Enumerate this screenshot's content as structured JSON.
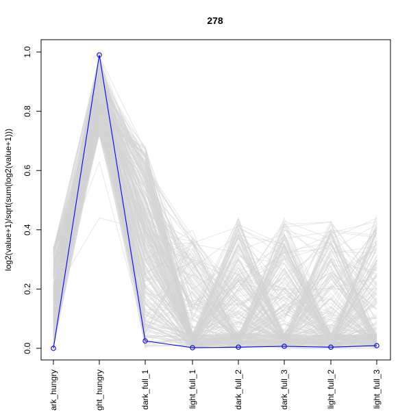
{
  "chart_data": {
    "type": "line",
    "title": "278",
    "xlabel": "",
    "ylabel": "log2(value+1)/sqrt(sum(log2(value+1)))",
    "categories": [
      "dark_hungry",
      "light_hungry",
      "dark_full_1",
      "light_full_1",
      "dark_full_2",
      "dark_full_3",
      "light_full_2",
      "light_full_3"
    ],
    "visible_tick_text": [
      "ark_hungry",
      "ght_hungry",
      "dark_full_1",
      "light_full_1",
      "dark_full_2",
      "dark_full_3",
      "light_full_2",
      "light_full_3"
    ],
    "ylim": [
      0,
      1.0
    ],
    "yticks": [
      "0.0",
      "0.2",
      "0.4",
      "0.6",
      "0.8",
      "1.0"
    ],
    "grid": false,
    "legend": "none",
    "series": [
      {
        "values": [
          0.0,
          0.99,
          0.025,
          0.002,
          0.004,
          0.007,
          0.004,
          0.009
        ],
        "color": "#0000ff",
        "marker": "open-circle"
      }
    ],
    "background_profiles": {
      "color": "#d3d3d3",
      "description_values": [
        [
          0.1,
          0.92,
          0.65,
          0.1,
          0.0,
          0.02,
          0.0,
          0.01
        ],
        [
          0.2,
          0.85,
          0.55,
          0.05,
          0.3,
          0.05,
          0.02,
          0.25
        ],
        [
          0.3,
          0.78,
          0.2,
          0.0,
          0.0,
          0.35,
          0.0,
          0.0
        ],
        [
          0.05,
          0.95,
          0.4,
          0.2,
          0.02,
          0.0,
          0.38,
          0.03
        ],
        [
          0.25,
          0.82,
          0.1,
          0.3,
          0.25,
          0.3,
          0.0,
          0.4
        ],
        [
          0.15,
          0.88,
          0.68,
          0.0,
          0.4,
          0.0,
          0.0,
          0.0
        ],
        [
          0.33,
          0.74,
          0.3,
          0.1,
          0.0,
          0.4,
          0.3,
          0.1
        ],
        [
          0.08,
          0.9,
          0.5,
          0.0,
          0.2,
          0.2,
          0.2,
          0.2
        ],
        [
          0.22,
          0.63,
          0.05,
          0.25,
          0.15,
          0.0,
          0.1,
          0.35
        ],
        [
          0.18,
          0.44,
          0.4,
          0.15,
          0.1,
          0.25,
          0.05,
          0.15
        ],
        [
          0.12,
          0.86,
          0.62,
          0.35,
          0.0,
          0.1,
          0.42,
          0.0
        ],
        [
          0.28,
          0.8,
          0.15,
          0.0,
          0.35,
          0.0,
          0.0,
          0.3
        ],
        [
          0.02,
          0.97,
          0.58,
          0.05,
          0.0,
          0.38,
          0.0,
          0.45
        ],
        [
          0.3,
          0.76,
          0.45,
          0.2,
          0.3,
          0.05,
          0.25,
          0.05
        ],
        [
          0.16,
          0.89,
          0.25,
          0.0,
          0.05,
          0.3,
          0.35,
          0.2
        ],
        [
          0.26,
          0.83,
          0.66,
          0.1,
          0.44,
          0.0,
          0.0,
          0.0
        ],
        [
          0.06,
          0.93,
          0.35,
          0.3,
          0.0,
          0.2,
          0.4,
          0.38
        ],
        [
          0.34,
          0.72,
          0.08,
          0.05,
          0.2,
          0.42,
          0.1,
          0.1
        ],
        [
          0.1,
          0.91,
          0.6,
          0.0,
          0.25,
          0.0,
          0.3,
          0.0
        ],
        [
          0.2,
          0.84,
          0.3,
          0.4,
          0.0,
          0.15,
          0.0,
          0.25
        ]
      ]
    }
  }
}
